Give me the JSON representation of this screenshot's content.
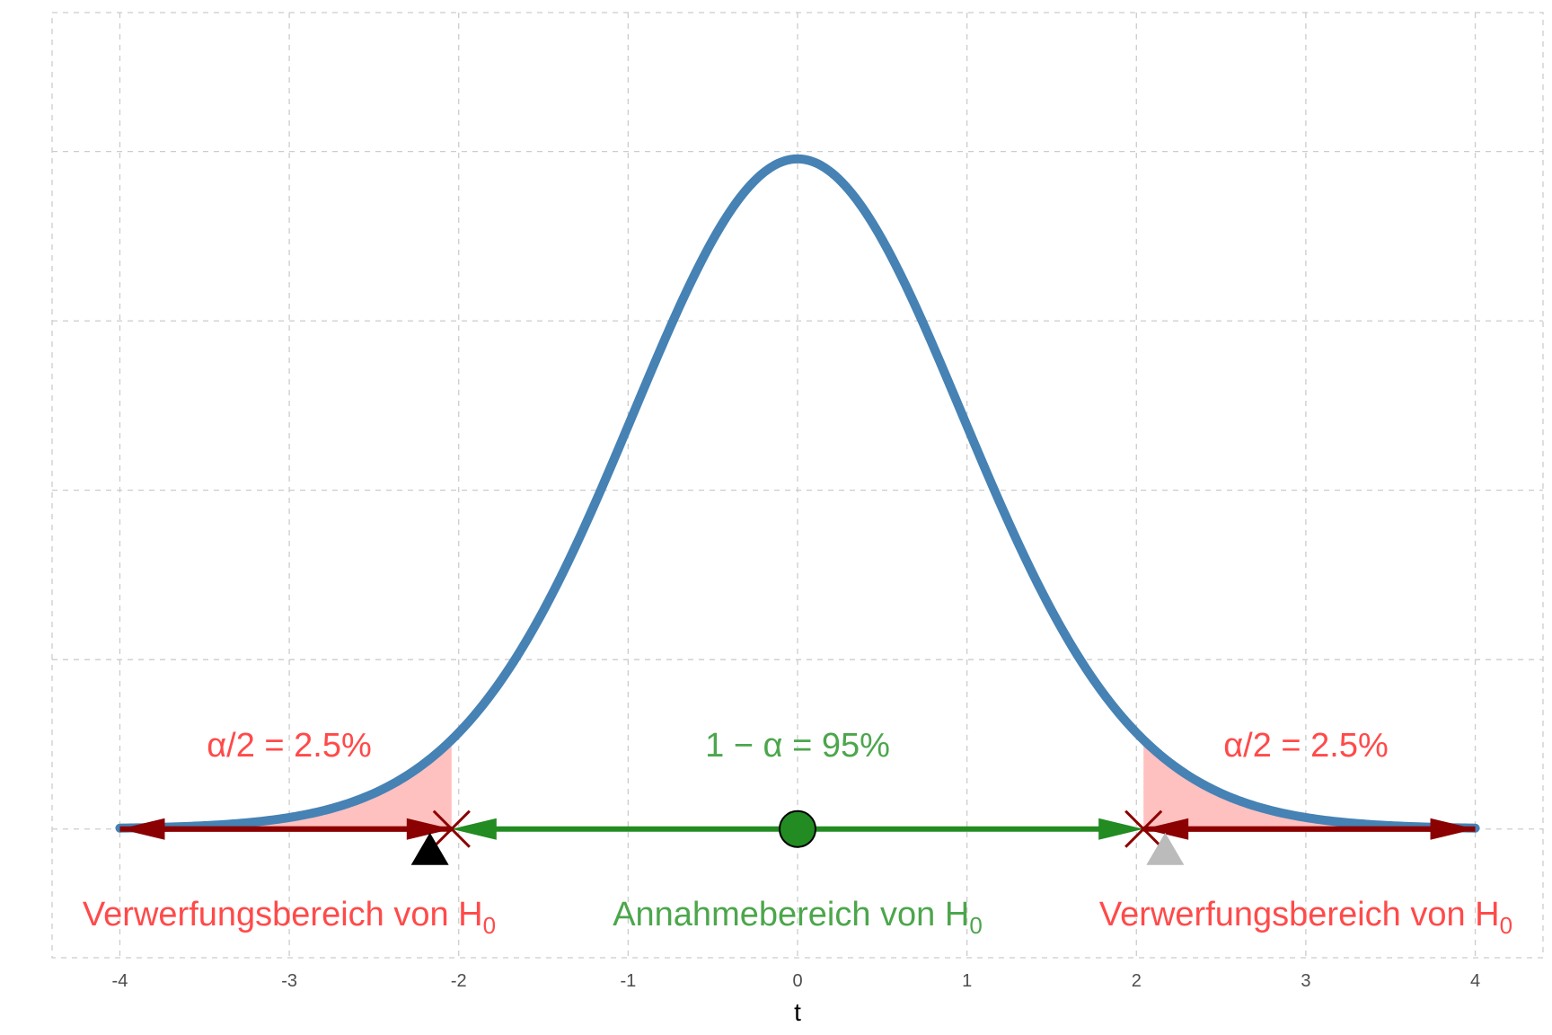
{
  "chart_data": {
    "type": "line",
    "title": "",
    "xlabel": "t",
    "ylabel": "",
    "xlim": [
      -4.4,
      4.4
    ],
    "ylim": [
      -0.076,
      0.482
    ],
    "grid": true,
    "x_ticks": [
      -4,
      -3,
      -2,
      -1,
      0,
      1,
      2,
      3,
      4
    ],
    "x_tick_labels": [
      "-4",
      "-3",
      "-2",
      "-1",
      "0",
      "1",
      "2",
      "3",
      "4"
    ],
    "y_gridlines": [
      0,
      0.1,
      0.2,
      0.3,
      0.4
    ],
    "series": [
      {
        "name": "",
        "kind": "t-density",
        "df": 30,
        "x_range": [
          -4,
          4
        ],
        "color": "#4682B4"
      }
    ],
    "shaded_regions": [
      {
        "x_from": -4,
        "x_to": -2.042,
        "color": "#FFC0C0"
      },
      {
        "x_from": 2.042,
        "x_to": 4,
        "color": "#FFC0C0"
      }
    ],
    "critical_values": [
      -2.042,
      2.042
    ],
    "arrows": [
      {
        "from": -2.042,
        "to": -4,
        "color": "#8B0000"
      },
      {
        "from": -4,
        "to": -2.042,
        "color": "#8B0000"
      },
      {
        "from": 0,
        "to": -2.042,
        "color": "#228B22"
      },
      {
        "from": 0,
        "to": 2.042,
        "color": "#228B22"
      },
      {
        "from": 2.042,
        "to": 4,
        "color": "#8B0000"
      },
      {
        "from": 4,
        "to": 2.042,
        "color": "#8B0000"
      }
    ],
    "markers": [
      {
        "shape": "circle",
        "x": 0,
        "color": "#228B22"
      },
      {
        "shape": "triangle",
        "x": -2.17,
        "color": "#000000"
      },
      {
        "shape": "triangle",
        "x": 2.17,
        "color": "#BBBBBB"
      }
    ],
    "annotations": {
      "left_alpha": "α/2 = 2.5%",
      "center_alpha": "1 − α = 95%",
      "right_alpha": "α/2 = 2.5%",
      "left_region": {
        "text": "Verwerfungsbereich von H",
        "sub": "0"
      },
      "center_region": {
        "text": "Annahmebereich von H",
        "sub": "0"
      },
      "right_region": {
        "text": "Verwerfungsbereich von H",
        "sub": "0"
      }
    },
    "colors": {
      "curve": "#4682B4",
      "reject": "#FF4A4A",
      "accept": "#4CA64C",
      "reject_arrow": "#8B0000",
      "accept_arrow": "#228B22",
      "shade": "#FFC0C0",
      "grid": "#CCCCCC"
    }
  }
}
